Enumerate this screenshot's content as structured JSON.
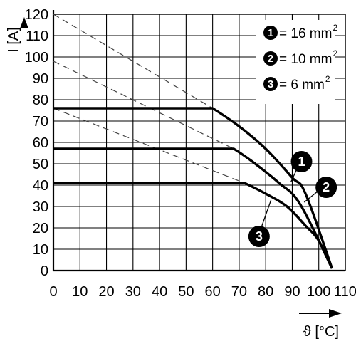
{
  "chart_data": {
    "type": "line",
    "title": "",
    "xlabel": "ϑ [°C]",
    "ylabel": "I [A]",
    "xlim": [
      0,
      110
    ],
    "ylim": [
      0,
      120
    ],
    "xticks": [
      0,
      10,
      20,
      30,
      40,
      50,
      60,
      70,
      80,
      90,
      100,
      110
    ],
    "yticks": [
      0,
      10,
      20,
      30,
      40,
      50,
      60,
      70,
      80,
      90,
      100,
      110,
      120
    ],
    "grid": true,
    "legend_position": "top-right",
    "series": [
      {
        "name": "1 = 16 mm²",
        "marker": "1",
        "legend_text": "= 16 mm",
        "legend_sup": "2",
        "color": "#000000",
        "points": [
          [
            0,
            76
          ],
          [
            60,
            76
          ],
          [
            70,
            67.5
          ],
          [
            80,
            57
          ],
          [
            90,
            43.5
          ],
          [
            95,
            36
          ],
          [
            105,
            1
          ]
        ]
      },
      {
        "name": "2 = 10 mm²",
        "marker": "2",
        "legend_text": "= 10 mm",
        "legend_sup": "2",
        "color": "#000000",
        "points": [
          [
            0,
            57
          ],
          [
            68,
            57
          ],
          [
            75,
            51
          ],
          [
            85,
            41
          ],
          [
            93,
            31
          ],
          [
            105,
            1
          ]
        ]
      },
      {
        "name": "3 = 6 mm²",
        "marker": "3",
        "legend_text": "= 6 mm",
        "legend_sup": "2",
        "color": "#000000",
        "points": [
          [
            0,
            41
          ],
          [
            72,
            41
          ],
          [
            80,
            36
          ],
          [
            88,
            30
          ],
          [
            95,
            21
          ],
          [
            100,
            14
          ],
          [
            105,
            1
          ]
        ]
      }
    ],
    "derating_lines": [
      {
        "points": [
          [
            0,
            120
          ],
          [
            60,
            76
          ]
        ]
      },
      {
        "points": [
          [
            0,
            98
          ],
          [
            68,
            57
          ]
        ]
      },
      {
        "points": [
          [
            0,
            76
          ],
          [
            72,
            41
          ]
        ]
      }
    ],
    "callouts": [
      {
        "label": "1",
        "x": 93.5,
        "y": 51,
        "leader": [
          [
            89.5,
            41.5
          ],
          [
            92.7,
            50
          ]
        ]
      },
      {
        "label": "2",
        "x": 102.8,
        "y": 39,
        "leader": [
          [
            94.5,
            32
          ],
          [
            100.5,
            38
          ]
        ]
      },
      {
        "label": "3",
        "x": 77.5,
        "y": 16,
        "leader": [
          [
            82,
            33
          ],
          [
            78,
            19
          ]
        ]
      }
    ]
  }
}
